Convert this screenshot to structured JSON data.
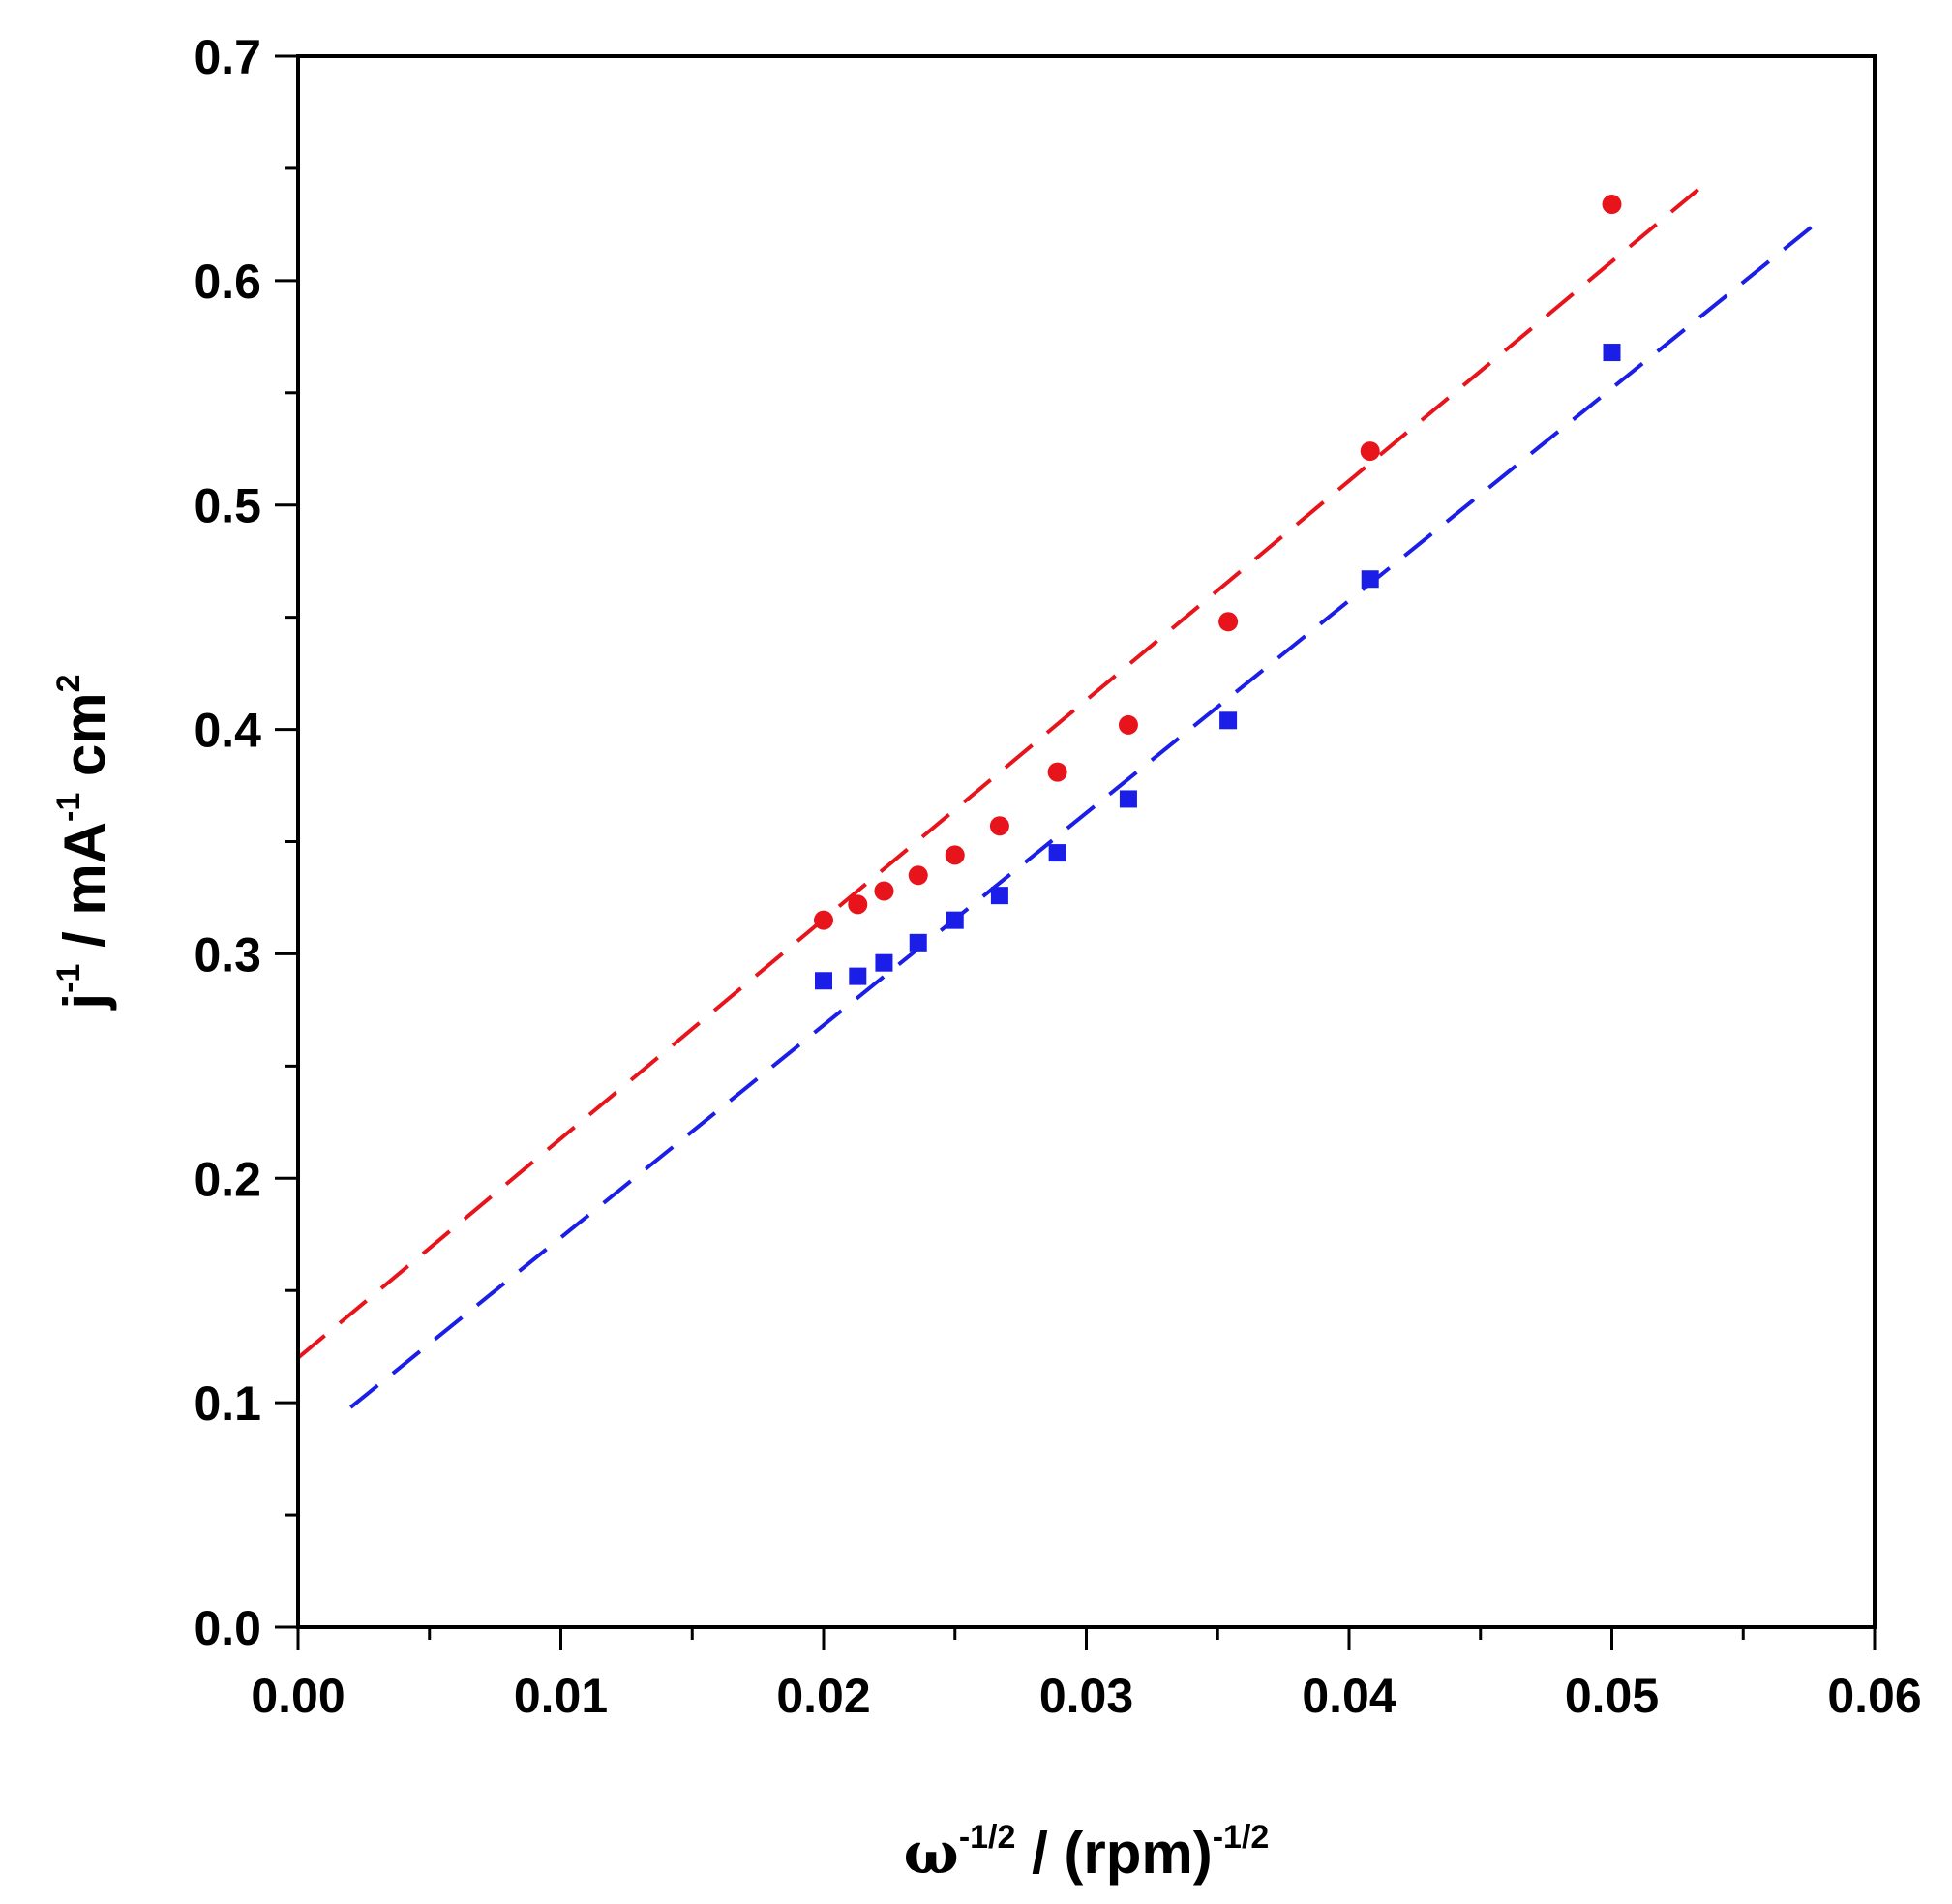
{
  "chart_data": {
    "type": "scatter",
    "title": "",
    "xlabel": {
      "parts": [
        {
          "text": "ω",
          "style": "omega"
        },
        {
          "text": "-1/2",
          "style": "sup"
        },
        {
          "text": " / (rpm)",
          "style": "normal"
        },
        {
          "text": "-1/2",
          "style": "sup"
        }
      ]
    },
    "ylabel": {
      "parts": [
        {
          "text": "j",
          "style": "normal"
        },
        {
          "text": "-1",
          "style": "sup"
        },
        {
          "text": " / mA",
          "style": "normal"
        },
        {
          "text": "-1",
          "style": "sup"
        },
        {
          "text": " cm",
          "style": "normal"
        },
        {
          "text": "2",
          "style": "sup"
        }
      ]
    },
    "xlim": [
      0,
      0.06
    ],
    "ylim": [
      0,
      0.7
    ],
    "x_major_ticks": [
      0.0,
      0.01,
      0.02,
      0.03,
      0.04,
      0.05,
      0.06
    ],
    "x_tick_labels": [
      "0.00",
      "0.01",
      "0.02",
      "0.03",
      "0.04",
      "0.05",
      "0.06"
    ],
    "x_minor_step": 0.005,
    "y_major_ticks": [
      0.0,
      0.1,
      0.2,
      0.3,
      0.4,
      0.5,
      0.6,
      0.7
    ],
    "y_tick_labels": [
      "0.0",
      "0.1",
      "0.2",
      "0.3",
      "0.4",
      "0.5",
      "0.6",
      "0.7"
    ],
    "y_minor_step": 0.05,
    "grid": false,
    "legend": "none",
    "series": [
      {
        "name": "red circles",
        "marker": "circle",
        "color": "#e8141c",
        "x": [
          0.02,
          0.0213,
          0.0223,
          0.0236,
          0.025,
          0.0267,
          0.0289,
          0.0316,
          0.0354,
          0.0408,
          0.05
        ],
        "y": [
          0.315,
          0.322,
          0.328,
          0.335,
          0.344,
          0.357,
          0.381,
          0.402,
          0.448,
          0.524,
          0.634
        ],
        "fit": {
          "x_start": 0.0,
          "x_end": 0.0538,
          "slope": 9.77,
          "intercept": 0.12
        }
      },
      {
        "name": "blue squares",
        "marker": "square",
        "color": "#1a1ee6",
        "x": [
          0.02,
          0.0213,
          0.0223,
          0.0236,
          0.025,
          0.0267,
          0.0289,
          0.0316,
          0.0354,
          0.0408,
          0.05
        ],
        "y": [
          0.288,
          0.29,
          0.296,
          0.305,
          0.315,
          0.326,
          0.345,
          0.369,
          0.404,
          0.467,
          0.568
        ],
        "fit": {
          "x_start": 0.002,
          "x_end": 0.0578,
          "slope": 9.46,
          "intercept": 0.079
        }
      }
    ]
  }
}
